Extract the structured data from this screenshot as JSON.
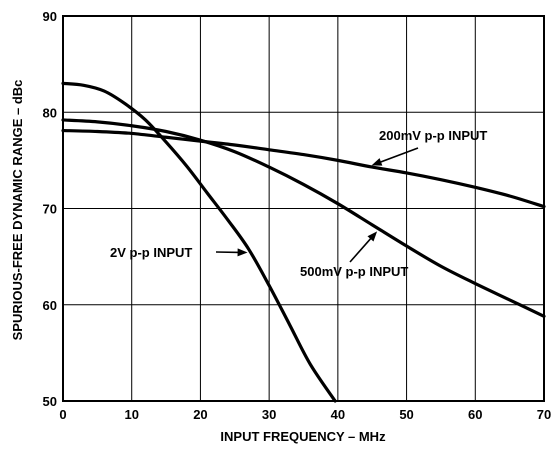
{
  "chart_data": {
    "type": "line",
    "title": "",
    "xlabel": "INPUT FREQUENCY – MHz",
    "ylabel": "SPURIOUS-FREE DYNAMIC RANGE – dBc",
    "xlim": [
      0,
      70
    ],
    "ylim": [
      50,
      90
    ],
    "grid": true,
    "x_ticks": [
      "0",
      "10",
      "20",
      "30",
      "40",
      "50",
      "60",
      "70"
    ],
    "y_ticks": [
      "50",
      "60",
      "70",
      "80",
      "90"
    ],
    "series": [
      {
        "name": "2V p-p INPUT",
        "x": [
          0,
          3,
          6,
          9,
          12,
          15,
          18,
          21,
          24,
          27,
          30,
          33,
          36,
          39.6
        ],
        "y": [
          83,
          82.8,
          82.2,
          80.9,
          79.2,
          76.9,
          74.4,
          71.6,
          68.8,
          65.8,
          62.0,
          57.9,
          53.8,
          50
        ]
      },
      {
        "name": "500mV p-p INPUT",
        "x": [
          0,
          5,
          10,
          15,
          20,
          25,
          30,
          35,
          40,
          45,
          50,
          55,
          60,
          65,
          70
        ],
        "y": [
          79.2,
          79.0,
          78.6,
          78.0,
          77.1,
          75.9,
          74.3,
          72.5,
          70.5,
          68.3,
          66.1,
          64.0,
          62.2,
          60.5,
          58.8
        ]
      },
      {
        "name": "200mV p-p INPUT",
        "x": [
          0,
          5,
          10,
          15,
          20,
          25,
          30,
          35,
          40,
          45,
          50,
          55,
          60,
          65,
          70
        ],
        "y": [
          78.1,
          78.0,
          77.8,
          77.4,
          77.0,
          76.6,
          76.1,
          75.6,
          75.0,
          74.3,
          73.7,
          73.0,
          72.2,
          71.3,
          70.2
        ]
      }
    ],
    "annotations": [
      {
        "text": "200mV p-p INPUT",
        "series": "200mV p-p INPUT"
      },
      {
        "text": "2V p-p INPUT",
        "series": "2V p-p INPUT"
      },
      {
        "text": "500mV p-p INPUT",
        "series": "500mV p-p INPUT"
      }
    ]
  },
  "colors": {
    "background": "#ffffff",
    "grid": "#000000",
    "series": "#000000"
  }
}
